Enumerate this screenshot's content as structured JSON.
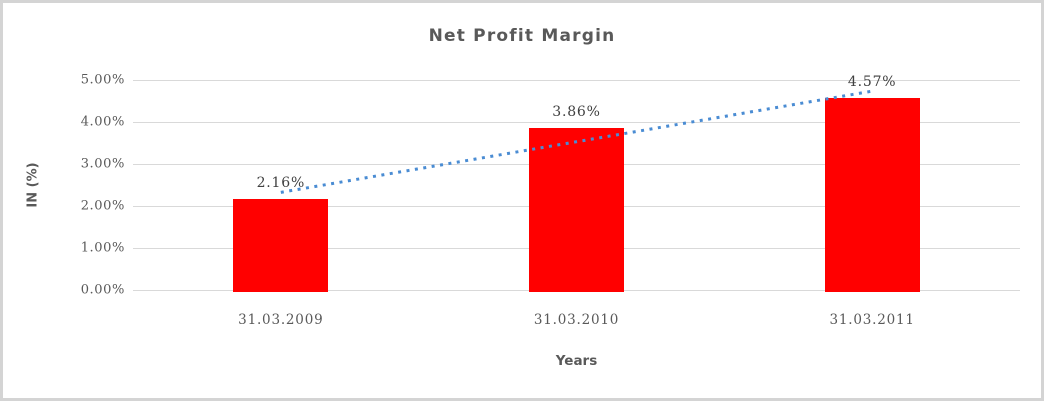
{
  "chart_data": {
    "type": "bar",
    "title": "Net Profit Margin",
    "xlabel": "Years",
    "ylabel": "IN (%)",
    "categories": [
      "31.03.2009",
      "31.03.2010",
      "31.03.2011"
    ],
    "values": [
      2.16,
      3.86,
      4.57
    ],
    "data_labels": [
      "2.16%",
      "3.86%",
      "4.57%"
    ],
    "y_ticks": [
      "0.00%",
      "1.00%",
      "2.00%",
      "3.00%",
      "4.00%",
      "5.00%"
    ],
    "ylim": [
      0,
      5
    ],
    "grid": true,
    "legend": false,
    "bar_color": "#ff0000",
    "gridline_color": "#d9d9d9",
    "axis_text_color": "#595959",
    "data_label_color": "#404040",
    "trendline": {
      "type": "linear",
      "style": "dotted",
      "color": "#4a8cd3"
    }
  }
}
